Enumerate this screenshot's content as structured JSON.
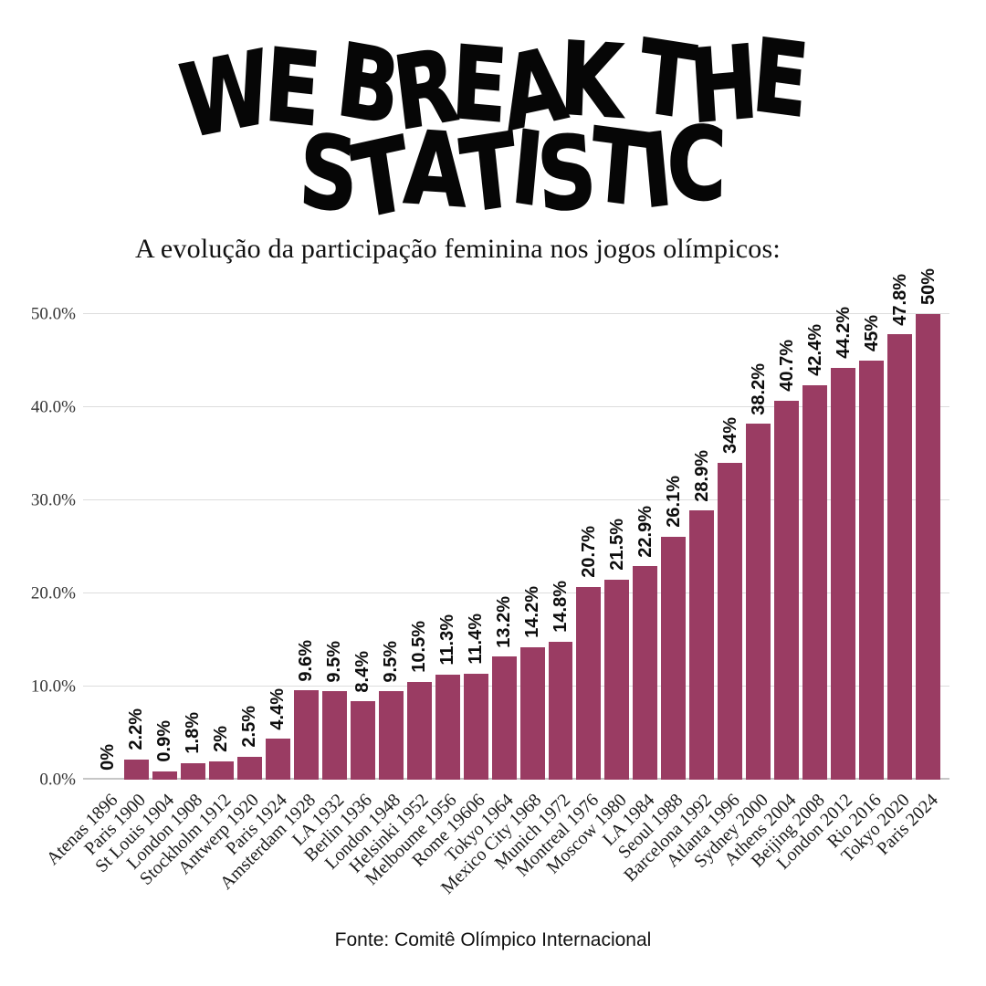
{
  "logo": {
    "line1": "WE BREAK THE",
    "line2": "STATISTIC"
  },
  "footer": "Fonte: Comitê Olímpico Internacional",
  "colors": {
    "bar": "#9A3C63",
    "grid": "#DDDDDD",
    "axis": "#C6C6C6"
  },
  "chart_data": {
    "type": "bar",
    "title": "A evolução da participação feminina nos jogos olímpicos:",
    "categories": [
      "Atenas 1896",
      "Paris 1900",
      "St Louis 1904",
      "London 1908",
      "Stockholm 1912",
      "Antwerp 1920",
      "Paris 1924",
      "Amsterdam 1928",
      "LA 1932",
      "Berlin 1936",
      "London 1948",
      "Helsinki 1952",
      "Melboume 1956",
      "Rome 19606",
      "Tokyo 1964",
      "Mexico City 1968",
      "Munich 1972",
      "Montreal 1976",
      "Moscow 1980",
      "LA 1984",
      "Seoul 1988",
      "Barcelona 1992",
      "Atlanta 1996",
      "Sydney 2000",
      "Athens 2004",
      "Beijing 2008",
      "London 2012",
      "Rio 2016",
      "Tokyo 2020",
      "Paris 2024"
    ],
    "values": [
      0,
      2.2,
      0.9,
      1.8,
      2,
      2.5,
      4.4,
      9.6,
      9.5,
      8.4,
      9.5,
      10.5,
      11.3,
      11.4,
      13.2,
      14.2,
      14.8,
      20.7,
      21.5,
      22.9,
      26.1,
      28.9,
      34,
      38.2,
      40.7,
      42.4,
      44.2,
      45,
      47.8,
      50
    ],
    "value_labels": [
      "0%",
      "2.2%",
      "0.9%",
      "1.8%",
      "2%",
      "2.5%",
      "4.4%",
      "9.6%",
      "9.5%",
      "8.4%",
      "9.5%",
      "10.5%",
      "11.3%",
      "11.4%",
      "13.2%",
      "14.2%",
      "14.8%",
      "20.7%",
      "21.5%",
      "22.9%",
      "26.1%",
      "28.9%",
      "34%",
      "38.2%",
      "40.7%",
      "42.4%",
      "44.2%",
      "45%",
      "47.8%",
      "50%"
    ],
    "y_ticks": [
      "0.0%",
      "10.0%",
      "20.0%",
      "30.0%",
      "40.0%",
      "50.0%"
    ],
    "ylim": [
      0,
      50
    ],
    "grid": true,
    "legend": false
  }
}
